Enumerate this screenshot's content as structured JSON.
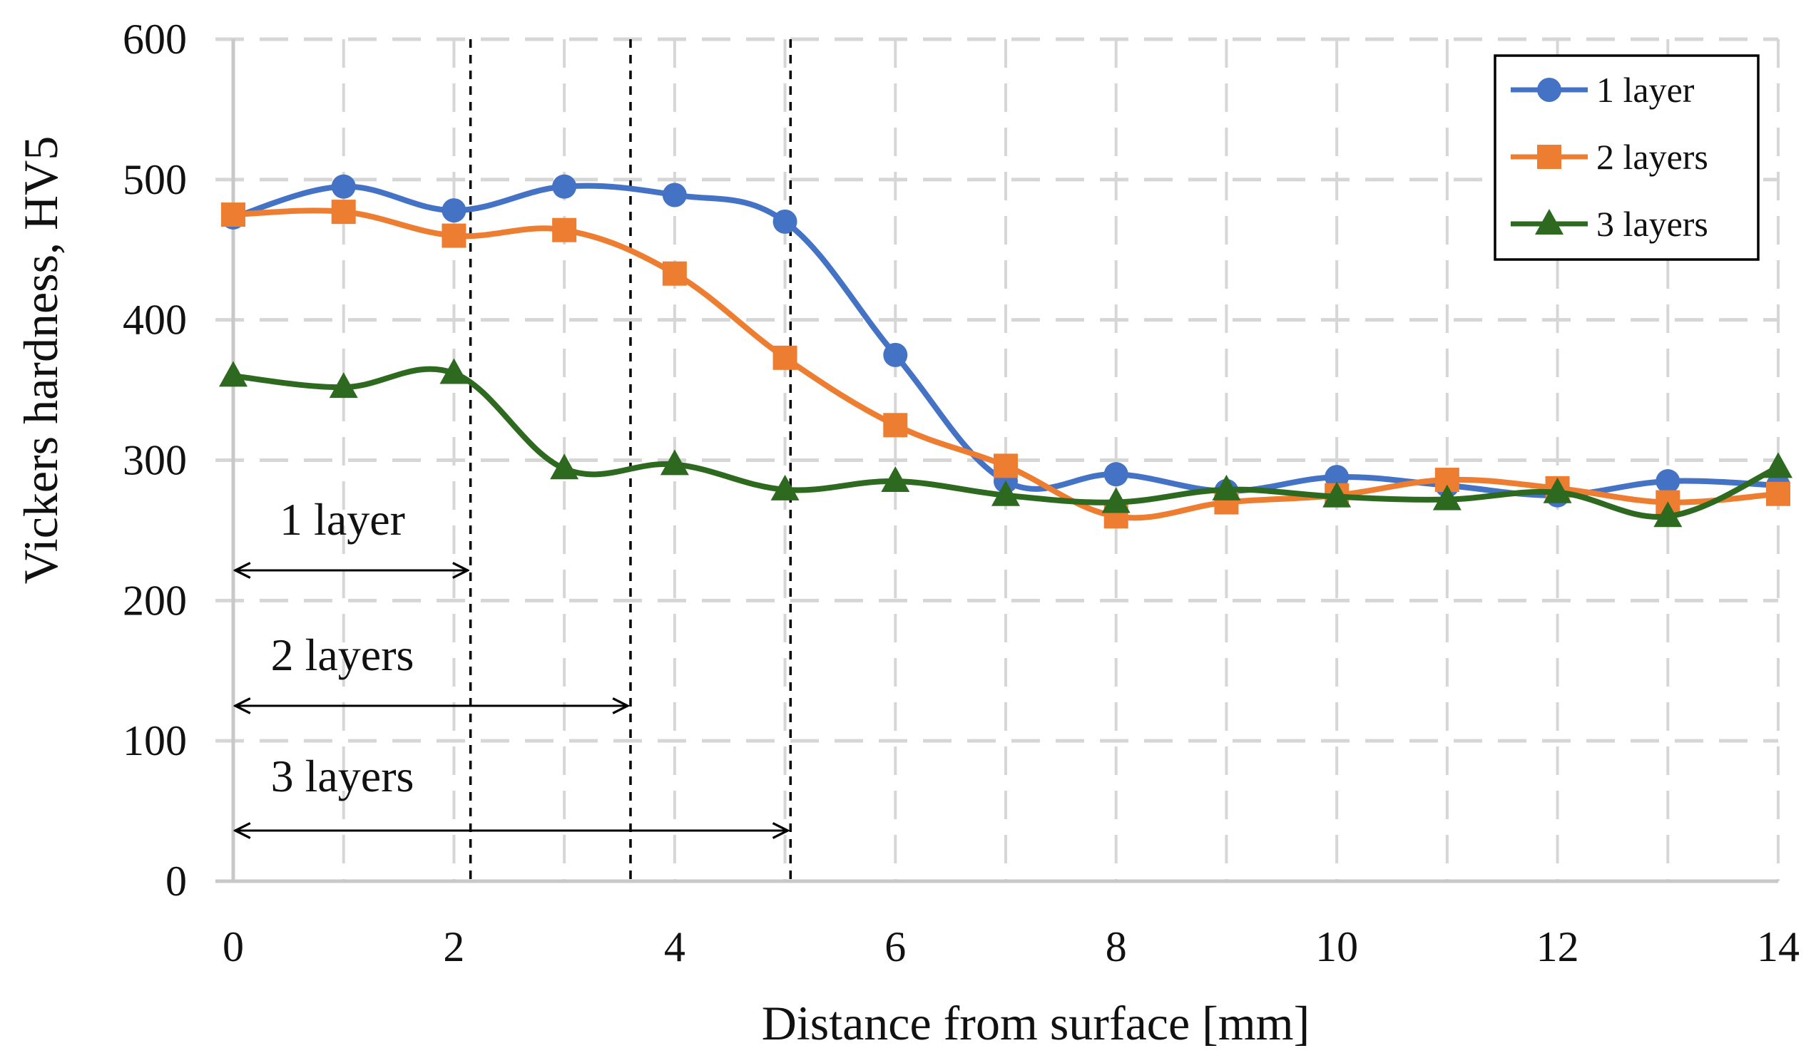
{
  "chart_data": {
    "type": "line",
    "title": "",
    "xlabel": "Distance from surface [mm]",
    "ylabel": "Vickers hardness, HV5",
    "xlim": [
      0,
      14
    ],
    "ylim": [
      0,
      600
    ],
    "xticks": [
      0,
      2,
      4,
      6,
      8,
      10,
      12,
      14
    ],
    "yticks": [
      0,
      100,
      200,
      300,
      400,
      500,
      600
    ],
    "x": [
      0,
      1,
      2,
      3,
      4,
      5,
      6,
      7,
      8,
      9,
      10,
      11,
      12,
      13,
      14
    ],
    "grid": true,
    "legend_position": "top-right",
    "series": [
      {
        "name": "1 layer",
        "color": "#4472C4",
        "marker": "circle",
        "values": [
          473,
          495,
          478,
          495,
          489,
          470,
          375,
          285,
          290,
          278,
          288,
          282,
          275,
          285,
          282
        ]
      },
      {
        "name": "2 layers",
        "color": "#ED7D31",
        "marker": "square",
        "values": [
          475,
          477,
          460,
          464,
          433,
          373,
          325,
          296,
          260,
          270,
          275,
          286,
          280,
          270,
          276
        ]
      },
      {
        "name": "3 layers",
        "color": "#2D6A1F",
        "marker": "triangle",
        "values": [
          360,
          352,
          362,
          294,
          297,
          279,
          285,
          275,
          270,
          279,
          274,
          272,
          277,
          260,
          295
        ]
      }
    ],
    "depth_markers": [
      {
        "label": "1 layer",
        "start": 0,
        "end": 2.15
      },
      {
        "label": "2 layers",
        "start": 0,
        "end": 3.6
      },
      {
        "label": "3 layers",
        "start": 0,
        "end": 5.05
      }
    ]
  }
}
